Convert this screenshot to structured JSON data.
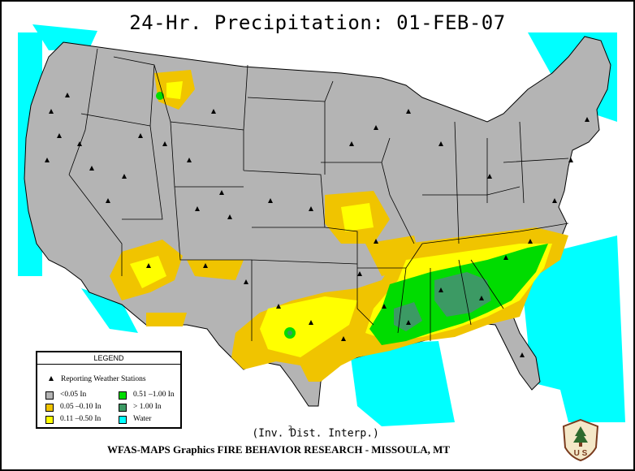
{
  "title": "24-Hr. Precipitation:  01-FEB-07",
  "legend": {
    "heading": "LEGEND",
    "stations_label": "Reporting Weather Stations",
    "classes": [
      {
        "label": "<0.05 In",
        "color": "#b4b4b4"
      },
      {
        "label": "0.05 –0.10 In",
        "color": "#f0c400"
      },
      {
        "label": "0.11 –0.50 In",
        "color": "#ffff00"
      },
      {
        "label": "0.51 –1.00 In",
        "color": "#00dc00"
      },
      {
        "label": "> 1.00 In",
        "color": "#3c9a64"
      },
      {
        "label": "Water",
        "color": "#00ffff"
      }
    ]
  },
  "method_note": "(Inv. Dist.  Interp.)",
  "method_superscript": "2",
  "footer": "WFAS-MAPS Graphics  FIRE BEHAVIOR RESEARCH - MISSOULA, MT",
  "logo_text": "U S",
  "logo_icon": "forest-service-shield-icon"
}
